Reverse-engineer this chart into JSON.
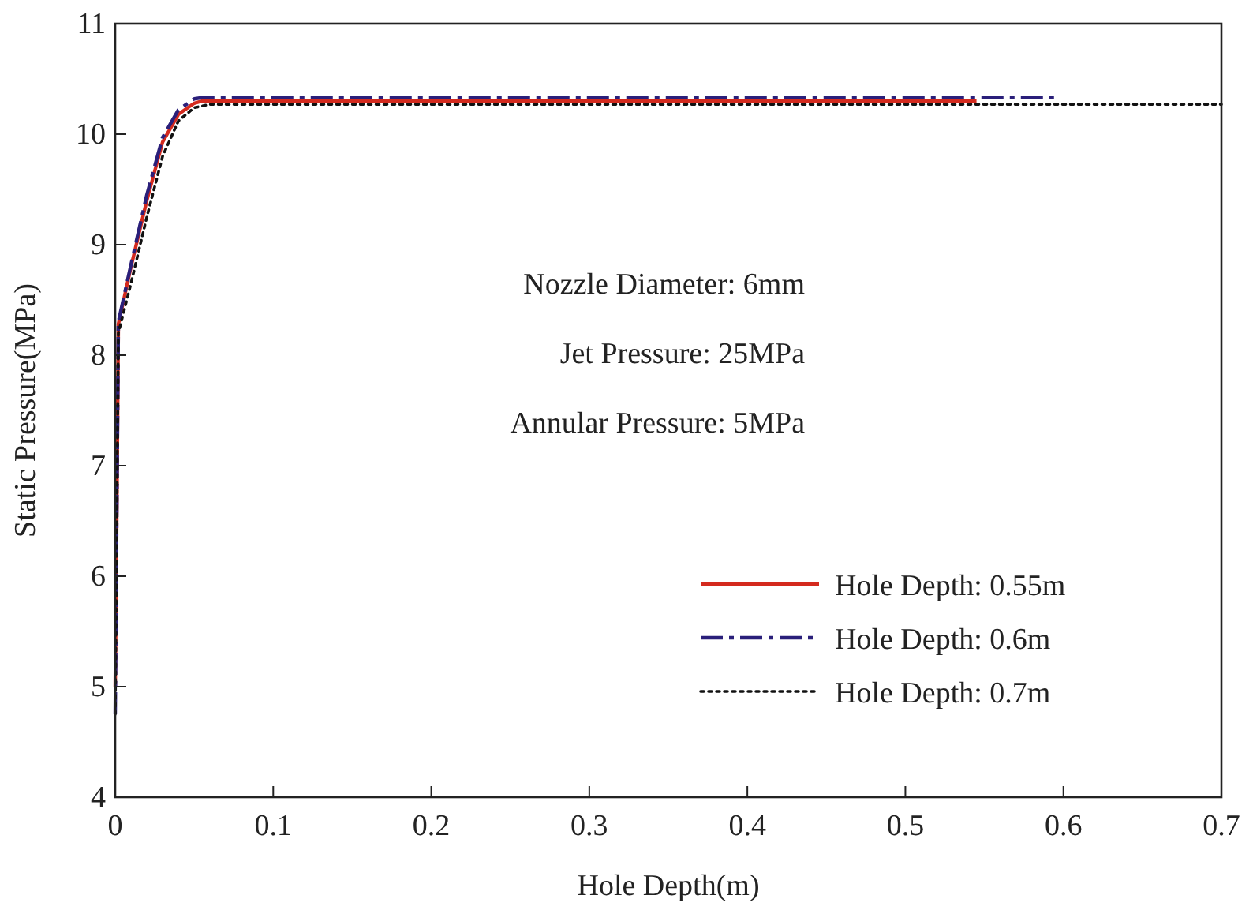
{
  "chart_data": {
    "type": "line",
    "xlabel": "Hole Depth(m)",
    "ylabel": "Static Pressure(MPa)",
    "xlim": [
      0,
      0.7
    ],
    "xticks": [
      0,
      0.1,
      0.2,
      0.3,
      0.4,
      0.5,
      0.6,
      0.7
    ],
    "ylim": [
      4,
      11
    ],
    "yticks": [
      4,
      5,
      6,
      7,
      8,
      9,
      10,
      11
    ],
    "legend": "bottom right",
    "grid": false,
    "marker": "none",
    "annotations": [
      {
        "text": "Nozzle Diameter: 6mm"
      },
      {
        "text": "Jet Pressure: 25MPa"
      },
      {
        "text": "Annular Pressure: 5MPa"
      }
    ],
    "series": [
      {
        "name": "Hole Depth: 0.55m",
        "color": "#d42a1e",
        "line_style": "solid",
        "x": [
          0,
          0.001,
          0.002,
          0.01,
          0.02,
          0.03,
          0.04,
          0.05,
          0.055,
          0.545
        ],
        "values": [
          5.0,
          6.5,
          8.28,
          8.8,
          9.4,
          9.93,
          10.18,
          10.28,
          10.3,
          10.3
        ]
      },
      {
        "name": "Hole Depth: 0.6m",
        "color": "#2a1f7a",
        "line_style": "dashdot",
        "x": [
          0,
          0.001,
          0.002,
          0.01,
          0.02,
          0.03,
          0.04,
          0.05,
          0.055,
          0.598
        ],
        "values": [
          4.75,
          6.5,
          8.3,
          8.82,
          9.45,
          9.97,
          10.22,
          10.32,
          10.33,
          10.33
        ]
      },
      {
        "name": "Hole Depth: 0.7m",
        "color": "#111111",
        "line_style": "dotted",
        "x": [
          0,
          0.001,
          0.002,
          0.01,
          0.02,
          0.03,
          0.04,
          0.05,
          0.06,
          0.7
        ],
        "values": [
          4.75,
          6.4,
          8.2,
          8.65,
          9.25,
          9.8,
          10.12,
          10.24,
          10.27,
          10.27
        ]
      }
    ]
  }
}
